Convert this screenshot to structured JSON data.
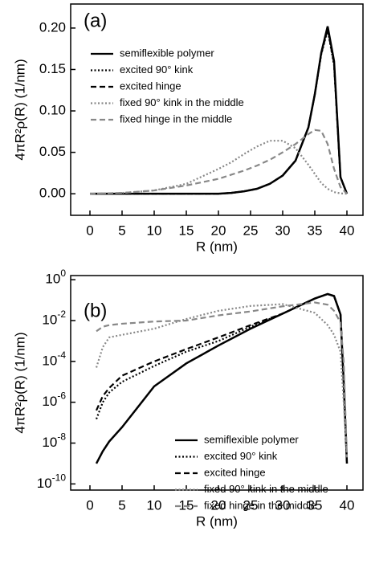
{
  "chart_data": [
    {
      "type": "line",
      "annotation": "(a)",
      "xlabel": "R (nm)",
      "ylabel": "4πR²ρ(R) (1/nm)",
      "x": [
        0,
        5,
        10,
        15,
        20,
        22,
        24,
        26,
        28,
        30,
        32,
        34,
        35,
        36,
        37,
        38,
        39,
        40
      ],
      "xlim": [
        -3,
        42.5
      ],
      "xticks": [
        0,
        5,
        10,
        15,
        20,
        25,
        30,
        35,
        40
      ],
      "ylim": [
        -0.026,
        0.229
      ],
      "yticks": [
        {
          "value": 0,
          "label": "0.00"
        },
        {
          "value": 0.05,
          "label": "0.05"
        },
        {
          "value": 0.1,
          "label": "0.10"
        },
        {
          "value": 0.15,
          "label": "0.15"
        },
        {
          "value": 0.2,
          "label": "0.20"
        }
      ],
      "legend": "upper left",
      "grid": false,
      "series": [
        {
          "name": "semiflexible polymer",
          "color": "#000000",
          "style": "solid",
          "values": [
            0,
            0,
            0,
            0,
            0,
            0.001,
            0.003,
            0.006,
            0.012,
            0.022,
            0.04,
            0.08,
            0.12,
            0.17,
            0.202,
            0.16,
            0.02,
            0
          ]
        },
        {
          "name": "excited 90° kink",
          "color": "#000000",
          "style": "dotted",
          "values": [
            0,
            0,
            0,
            0,
            0,
            0.001,
            0.003,
            0.006,
            0.012,
            0.022,
            0.04,
            0.08,
            0.12,
            0.168,
            0.198,
            0.155,
            0.02,
            0
          ]
        },
        {
          "name": "excited hinge",
          "color": "#000000",
          "style": "dashed",
          "values": [
            0,
            0,
            0,
            0,
            0,
            0.001,
            0.003,
            0.006,
            0.012,
            0.022,
            0.04,
            0.08,
            0.12,
            0.169,
            0.199,
            0.157,
            0.02,
            0
          ]
        },
        {
          "name": "fixed 90° kink in the middle",
          "color": "#888888",
          "style": "dotted",
          "values": [
            0,
            0.001,
            0.004,
            0.012,
            0.03,
            0.038,
            0.048,
            0.057,
            0.064,
            0.064,
            0.055,
            0.035,
            0.024,
            0.013,
            0.006,
            0.002,
            0.0005,
            0
          ]
        },
        {
          "name": "fixed hinge in the middle",
          "color": "#888888",
          "style": "dashed",
          "values": [
            0,
            0.001,
            0.004,
            0.01,
            0.018,
            0.023,
            0.028,
            0.034,
            0.041,
            0.05,
            0.06,
            0.072,
            0.077,
            0.076,
            0.06,
            0.03,
            0.008,
            0
          ]
        }
      ]
    },
    {
      "type": "line",
      "annotation": "(b)",
      "xlabel": "R (nm)",
      "ylabel": "4πR²ρ(R) (1/nm)",
      "x": [
        1,
        2,
        3,
        5,
        10,
        15,
        20,
        25,
        30,
        35,
        37,
        38,
        39,
        39.5,
        40
      ],
      "xlim": [
        -3,
        42.5
      ],
      "xticks": [
        0,
        5,
        10,
        15,
        20,
        25,
        30,
        35,
        40
      ],
      "yscale": "log",
      "ylim": [
        5e-11,
        1.6
      ],
      "yticks": [
        {
          "value": 1e-10,
          "label": "10^-10"
        },
        {
          "value": 1e-08,
          "label": "10^-8"
        },
        {
          "value": 1e-06,
          "label": "10^-6"
        },
        {
          "value": 0.0001,
          "label": "10^-4"
        },
        {
          "value": 0.01,
          "label": "10^-2"
        },
        {
          "value": 1,
          "label": "10^0"
        }
      ],
      "legend": "lower right",
      "grid": false,
      "series": [
        {
          "name": "semiflexible polymer",
          "color": "#000000",
          "style": "solid",
          "values": [
            1e-09,
            4e-09,
            1.2e-08,
            6e-08,
            6e-06,
            8e-05,
            0.0006,
            0.004,
            0.022,
            0.12,
            0.2,
            0.16,
            0.02,
            1e-05,
            1e-09
          ]
        },
        {
          "name": "excited 90° kink",
          "color": "#000000",
          "style": "dotted",
          "values": [
            1.5e-07,
            1e-06,
            3e-06,
            1e-05,
            6e-05,
            0.0003,
            0.001,
            0.005,
            0.022,
            0.12,
            0.198,
            0.155,
            0.02,
            1e-05,
            1e-09
          ]
        },
        {
          "name": "excited hinge",
          "color": "#000000",
          "style": "dashed",
          "values": [
            4e-07,
            2e-06,
            5e-06,
            2e-05,
            0.0001,
            0.0004,
            0.0015,
            0.006,
            0.022,
            0.12,
            0.199,
            0.157,
            0.02,
            1e-05,
            1e-09
          ]
        },
        {
          "name": "fixed 90° kink in the middle",
          "color": "#888888",
          "style": "dotted",
          "values": [
            5e-05,
            0.0005,
            0.0015,
            0.002,
            0.004,
            0.012,
            0.03,
            0.052,
            0.064,
            0.024,
            0.006,
            0.002,
            0.0003,
            1e-06,
            2e-09
          ]
        },
        {
          "name": "fixed hinge in the middle",
          "color": "#888888",
          "style": "dashed",
          "values": [
            0.003,
            0.005,
            0.006,
            0.007,
            0.009,
            0.01,
            0.018,
            0.028,
            0.05,
            0.077,
            0.06,
            0.03,
            0.008,
            0.0001,
            2e-09
          ]
        }
      ]
    }
  ]
}
